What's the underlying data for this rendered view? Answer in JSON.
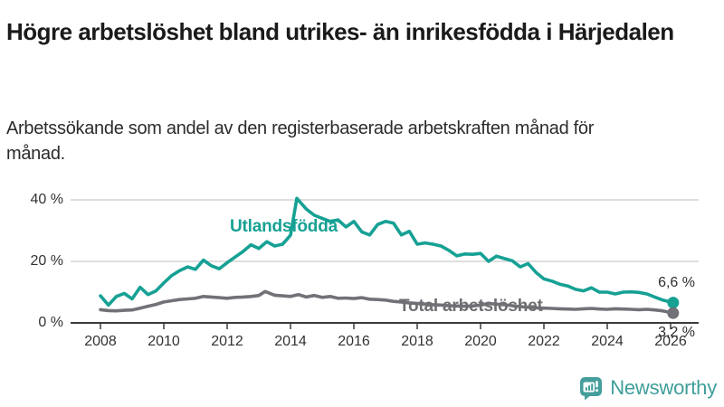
{
  "chart_data": {
    "type": "line",
    "title": "Högre arbetslöshet bland utrikes- än inrikesfödda i Härjedalen",
    "subtitle": "Arbetssökande som andel av den registerbaserade arbetskraften månad för månad.",
    "unit": "%",
    "grid": "horizontal",
    "xlim": [
      2007.06,
      2026.85
    ],
    "ylim": [
      0,
      43
    ],
    "x_ticks": [
      2008,
      2010,
      2012,
      2014,
      2016,
      2018,
      2020,
      2022,
      2024,
      2026
    ],
    "y_ticks": [
      {
        "value": 0,
        "label": "0 %"
      },
      {
        "value": 20,
        "label": "20 %"
      },
      {
        "value": 40,
        "label": "40 %"
      }
    ],
    "axis_color": "#3b3b3b",
    "gridline_color": "#dedede",
    "series": [
      {
        "name": "Utlandsfödda",
        "color": "#16a194",
        "end_label": "6,6 %",
        "end_value": 6.6,
        "points": [
          [
            2008,
            8.8
          ],
          [
            2008.25,
            5.8
          ],
          [
            2008.5,
            8.6
          ],
          [
            2008.75,
            9.6
          ],
          [
            2009,
            7.8
          ],
          [
            2009.25,
            11.6
          ],
          [
            2009.5,
            9.2
          ],
          [
            2009.75,
            10.4
          ],
          [
            2010,
            13
          ],
          [
            2010.25,
            15.4
          ],
          [
            2010.5,
            17
          ],
          [
            2010.75,
            18.2
          ],
          [
            2011,
            17.4
          ],
          [
            2011.25,
            20.4
          ],
          [
            2011.5,
            18.6
          ],
          [
            2011.75,
            17.6
          ],
          [
            2012,
            19.6
          ],
          [
            2012.25,
            21.4
          ],
          [
            2012.5,
            23.2
          ],
          [
            2012.75,
            25.4
          ],
          [
            2013,
            24.2
          ],
          [
            2013.25,
            26.4
          ],
          [
            2013.5,
            25
          ],
          [
            2013.75,
            25.6
          ],
          [
            2014,
            28.5
          ],
          [
            2014.2,
            40.5
          ],
          [
            2014.5,
            37
          ],
          [
            2014.75,
            35
          ],
          [
            2015,
            34
          ],
          [
            2015.25,
            33
          ],
          [
            2015.5,
            33.5
          ],
          [
            2015.75,
            31.2
          ],
          [
            2016,
            33
          ],
          [
            2016.25,
            29.6
          ],
          [
            2016.5,
            28.6
          ],
          [
            2016.75,
            32
          ],
          [
            2017,
            33
          ],
          [
            2017.25,
            32.4
          ],
          [
            2017.5,
            28.6
          ],
          [
            2017.75,
            29.8
          ],
          [
            2018,
            25.6
          ],
          [
            2018.25,
            26
          ],
          [
            2018.5,
            25.6
          ],
          [
            2018.75,
            25
          ],
          [
            2019,
            23.6
          ],
          [
            2019.25,
            21.8
          ],
          [
            2019.5,
            22.4
          ],
          [
            2019.75,
            22.3
          ],
          [
            2020,
            22.6
          ],
          [
            2020.25,
            20
          ],
          [
            2020.5,
            21.7
          ],
          [
            2020.75,
            20.9
          ],
          [
            2021,
            20.2
          ],
          [
            2021.25,
            18.2
          ],
          [
            2021.5,
            19.3
          ],
          [
            2021.75,
            16.4
          ],
          [
            2022,
            14.3
          ],
          [
            2022.25,
            13.6
          ],
          [
            2022.5,
            12.6
          ],
          [
            2022.75,
            12
          ],
          [
            2023,
            10.9
          ],
          [
            2023.25,
            10.4
          ],
          [
            2023.5,
            11.4
          ],
          [
            2023.75,
            10
          ],
          [
            2024,
            10
          ],
          [
            2024.25,
            9.4
          ],
          [
            2024.5,
            10
          ],
          [
            2024.75,
            10.1
          ],
          [
            2025,
            9.9
          ],
          [
            2025.25,
            9.4
          ],
          [
            2025.5,
            8.4
          ],
          [
            2025.75,
            7.4
          ],
          [
            2026.08,
            6.6
          ]
        ]
      },
      {
        "name": "Total arbetslöshet",
        "color": "#717177",
        "label_color": "#6e6e73",
        "end_label": "3,2 %",
        "end_value": 3.2,
        "points": [
          [
            2008,
            4.3
          ],
          [
            2008.25,
            4
          ],
          [
            2008.5,
            3.9
          ],
          [
            2008.75,
            4.1
          ],
          [
            2009,
            4.2
          ],
          [
            2009.25,
            4.8
          ],
          [
            2009.5,
            5.4
          ],
          [
            2009.75,
            6
          ],
          [
            2010,
            6.8
          ],
          [
            2010.25,
            7.2
          ],
          [
            2010.5,
            7.6
          ],
          [
            2010.75,
            7.8
          ],
          [
            2011,
            8
          ],
          [
            2011.25,
            8.6
          ],
          [
            2011.5,
            8.4
          ],
          [
            2011.75,
            8.2
          ],
          [
            2012,
            8
          ],
          [
            2012.25,
            8.3
          ],
          [
            2012.5,
            8.4
          ],
          [
            2012.75,
            8.6
          ],
          [
            2013,
            8.9
          ],
          [
            2013.2,
            10.2
          ],
          [
            2013.5,
            9
          ],
          [
            2013.75,
            8.8
          ],
          [
            2014,
            8.6
          ],
          [
            2014.25,
            9.2
          ],
          [
            2014.5,
            8.4
          ],
          [
            2014.75,
            8.9
          ],
          [
            2015,
            8.3
          ],
          [
            2015.25,
            8.6
          ],
          [
            2015.5,
            8
          ],
          [
            2015.75,
            8.1
          ],
          [
            2016,
            7.9
          ],
          [
            2016.25,
            8.2
          ],
          [
            2016.5,
            7.7
          ],
          [
            2016.75,
            7.6
          ],
          [
            2017,
            7.4
          ],
          [
            2017.25,
            7
          ],
          [
            2017.5,
            6.8
          ],
          [
            2017.75,
            6.5
          ],
          [
            2018,
            6.3
          ],
          [
            2018.25,
            6.1
          ],
          [
            2018.5,
            5.9
          ],
          [
            2018.75,
            5.8
          ],
          [
            2019,
            5.6
          ],
          [
            2019.25,
            5.5
          ],
          [
            2019.5,
            5.4
          ],
          [
            2019.75,
            5.5
          ],
          [
            2020,
            5.8
          ],
          [
            2020.25,
            6.3
          ],
          [
            2020.5,
            6.1
          ],
          [
            2020.75,
            5.9
          ],
          [
            2021,
            5.6
          ],
          [
            2021.25,
            5.3
          ],
          [
            2021.5,
            5.1
          ],
          [
            2021.75,
            4.9
          ],
          [
            2022,
            4.8
          ],
          [
            2022.25,
            4.7
          ],
          [
            2022.5,
            4.6
          ],
          [
            2022.75,
            4.5
          ],
          [
            2023,
            4.4
          ],
          [
            2023.25,
            4.6
          ],
          [
            2023.5,
            4.7
          ],
          [
            2023.75,
            4.5
          ],
          [
            2024,
            4.4
          ],
          [
            2024.25,
            4.6
          ],
          [
            2024.5,
            4.5
          ],
          [
            2024.75,
            4.4
          ],
          [
            2025,
            4.3
          ],
          [
            2025.25,
            4.4
          ],
          [
            2025.5,
            4.2
          ],
          [
            2025.75,
            3.9
          ],
          [
            2026.08,
            3.2
          ]
        ]
      }
    ]
  },
  "footer": {
    "brand": "Newsworthy",
    "brand_color": "#3f9e9a",
    "logo_icon": "bar-chart-speech-bubble"
  }
}
